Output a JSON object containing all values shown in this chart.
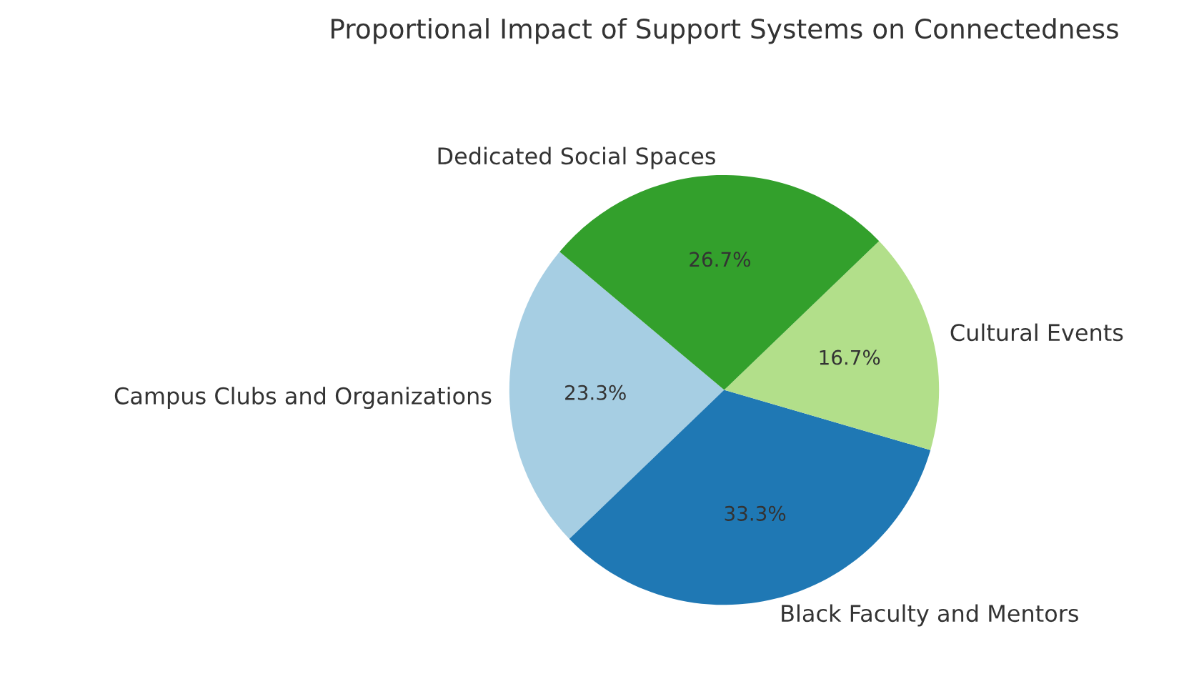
{
  "chart_data": {
    "type": "pie",
    "title": "Proportional Impact of Support Systems on Connectedness",
    "categories": [
      "Campus Clubs and Organizations",
      "Black Faculty and Mentors",
      "Cultural Events",
      "Dedicated Social Spaces"
    ],
    "values": [
      23.3,
      33.3,
      16.7,
      26.7
    ],
    "colors": [
      "#a6cee3",
      "#1f78b4",
      "#b2df8a",
      "#33a02c"
    ],
    "value_labels": [
      "23.3%",
      "33.3%",
      "16.7%",
      "26.7%"
    ],
    "legend": false
  }
}
